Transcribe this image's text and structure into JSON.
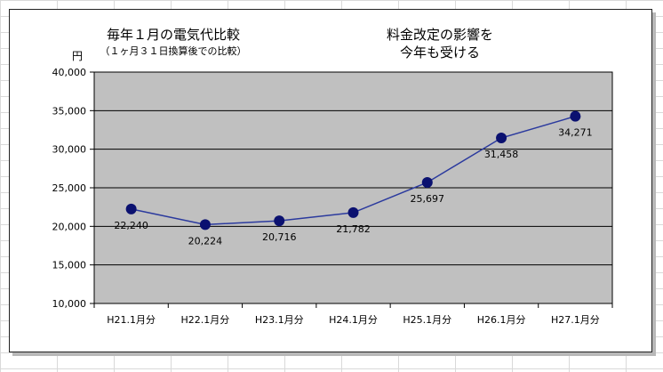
{
  "chart_data": {
    "type": "line",
    "title": "毎年１月の電気代比較",
    "subtitle": "（１ヶ月３１日換算後での比較）",
    "annotation": [
      "料金改定の影響を",
      "今年も受ける"
    ],
    "ylabel": "円",
    "xlabel": "",
    "categories": [
      "H21.1月分",
      "H22.1月分",
      "H23.1月分",
      "H24.1月分",
      "H25.1月分",
      "H26.1月分",
      "H27.1月分"
    ],
    "series": [
      {
        "values": [
          22240,
          20224,
          20716,
          21782,
          25697,
          31458,
          34271
        ],
        "data_labels": [
          "22,240",
          "20,224",
          "20,716",
          "21,782",
          "25,697",
          "31,458",
          "34,271"
        ]
      }
    ],
    "ylim": [
      10000,
      40000
    ],
    "yticks": [
      10000,
      15000,
      20000,
      25000,
      30000,
      35000,
      40000
    ],
    "ytick_labels": [
      "10,000",
      "15,000",
      "20,000",
      "25,000",
      "30,000",
      "35,000",
      "40,000"
    ],
    "grid": true,
    "legend": "none",
    "colors": {
      "plot_background": "#c0c0c0",
      "line": "#2b3a9e",
      "marker": "#0b1170",
      "gridline": "#000000"
    }
  }
}
